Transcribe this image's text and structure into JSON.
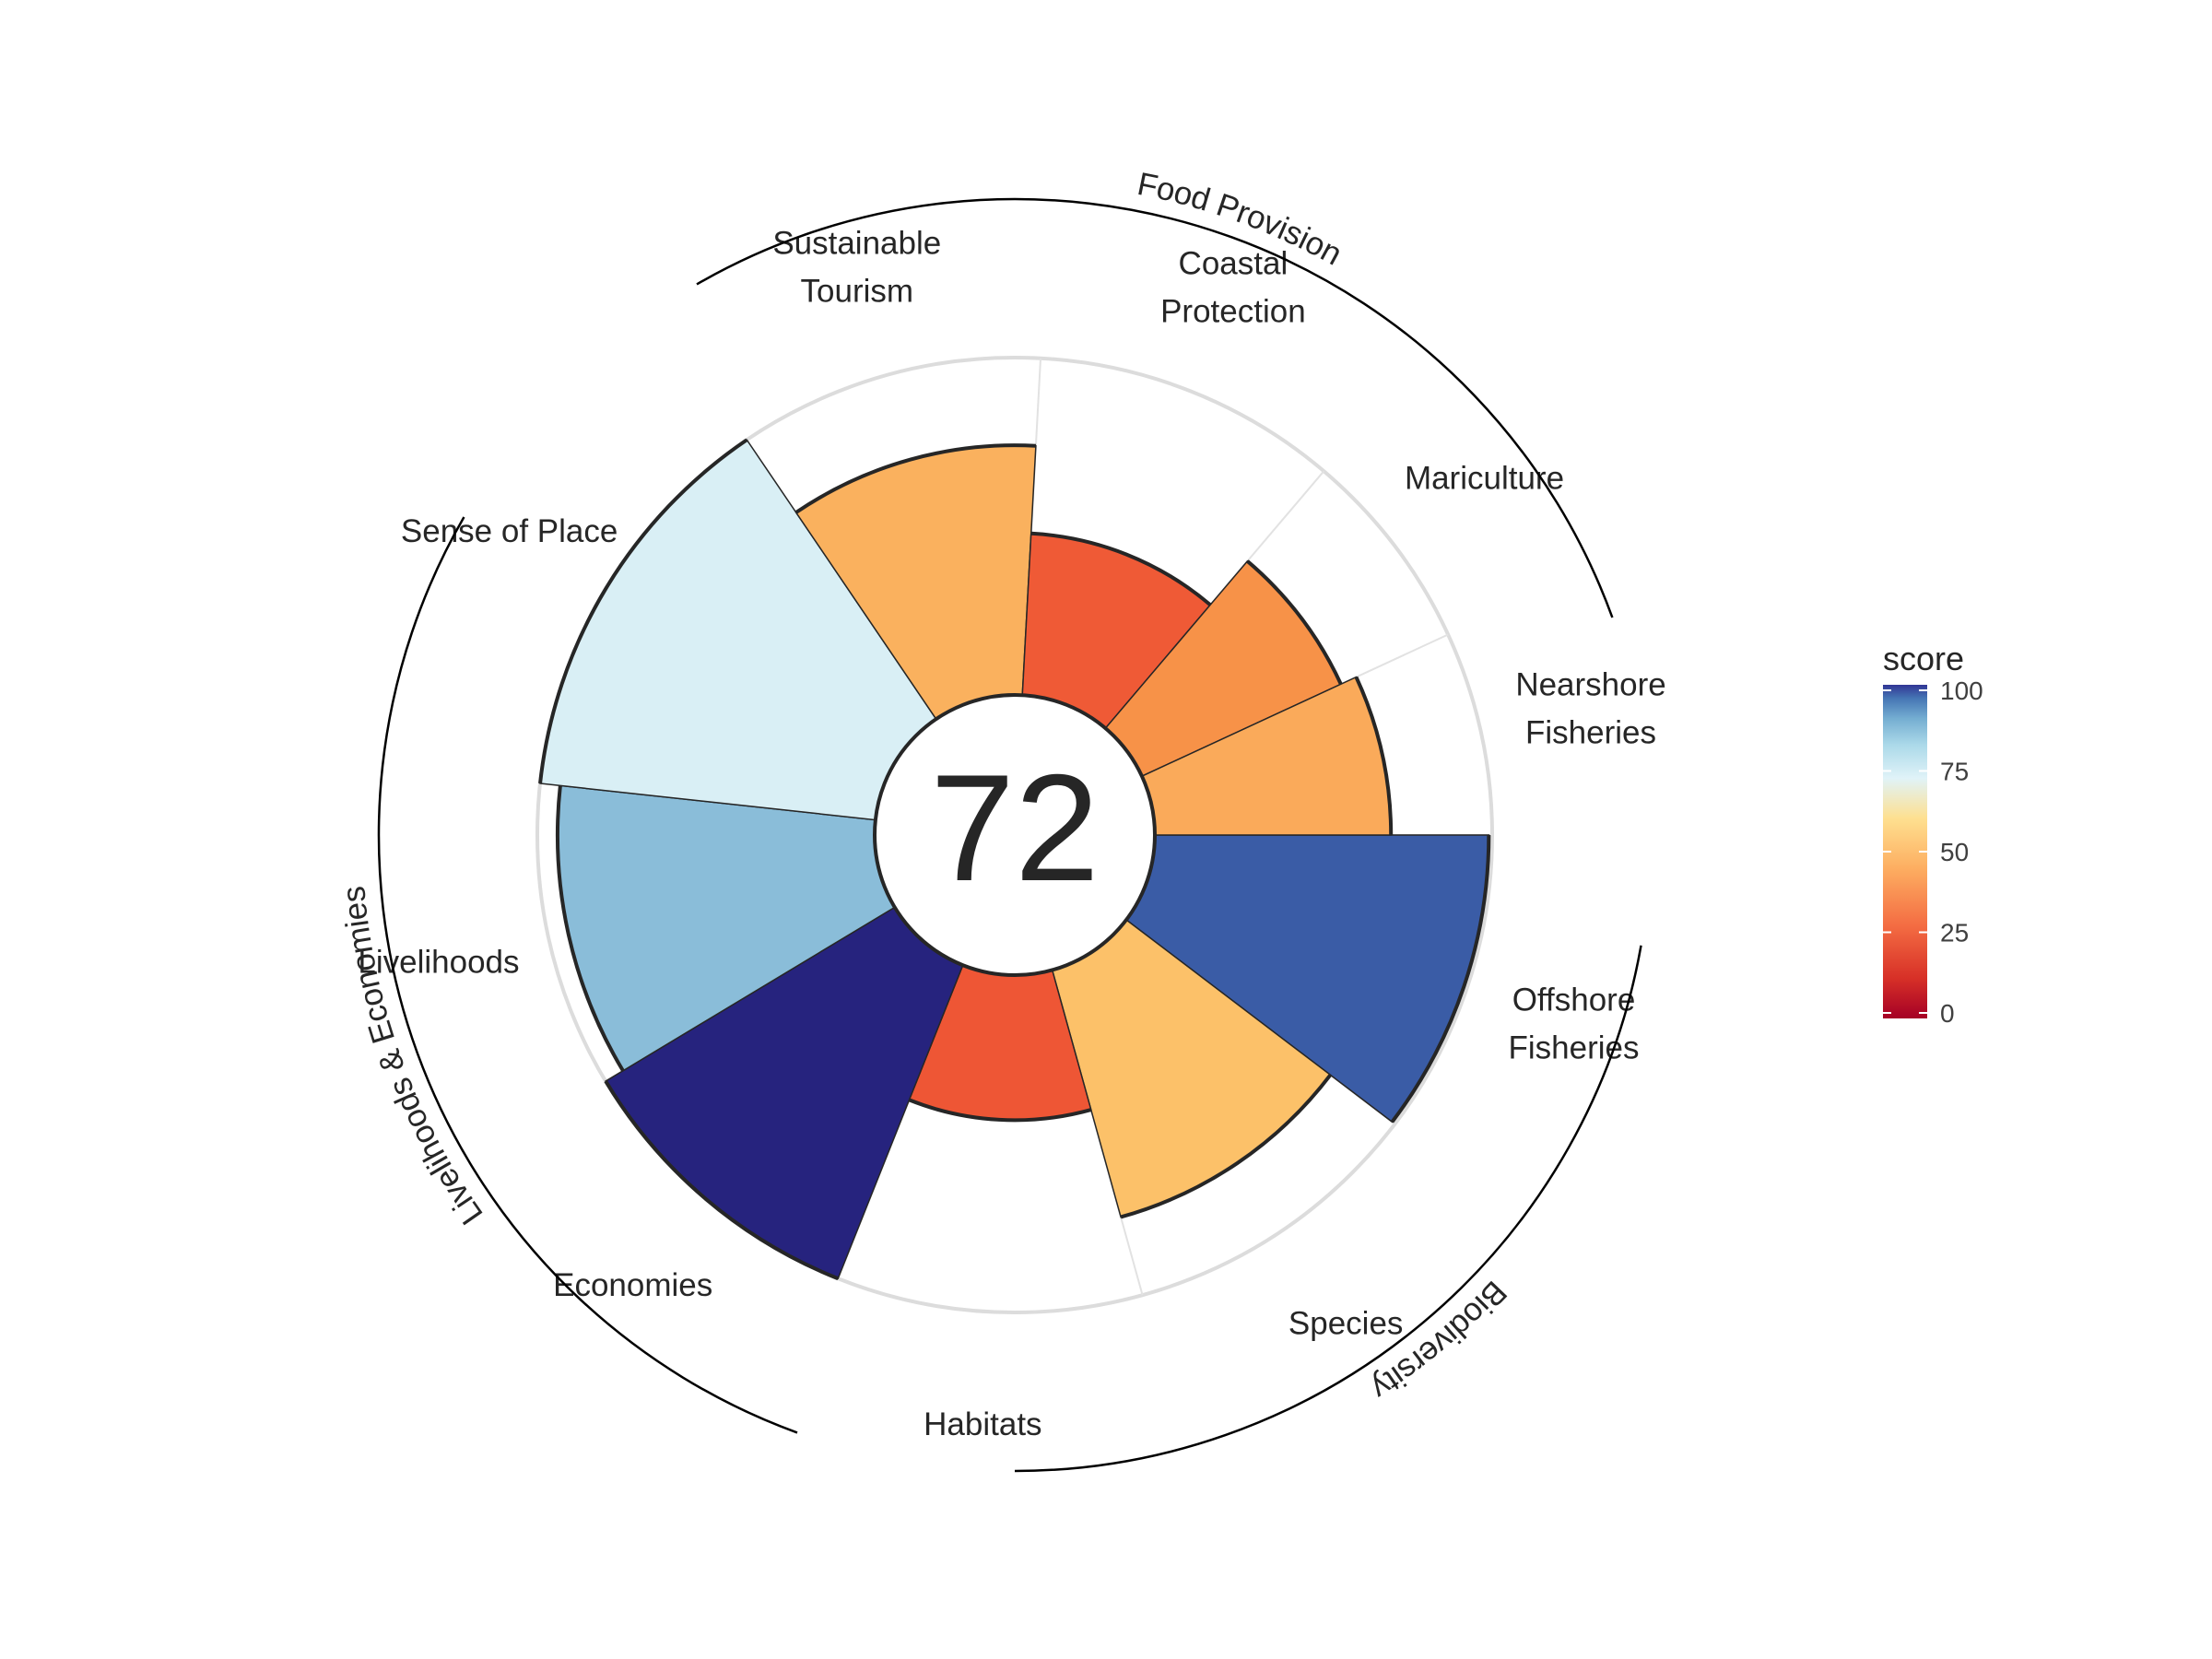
{
  "chart_data": {
    "type": "polar-bar",
    "center_label": "72",
    "rmax": 100,
    "rmin_inner_hole": 0.3,
    "grid": true,
    "categories": [
      "Offshore\nFisheries",
      "Species",
      "Habitats",
      "Economies",
      "Livelihoods",
      "Sense of Place",
      "Sustainable\nTourism",
      "Coastal\nProtection",
      "Mariculture",
      "Nearshore\nFisheries"
    ],
    "values": [
      99,
      76,
      43,
      100,
      94,
      100,
      74,
      48,
      65,
      70
    ],
    "widths": [
      1.5,
      1.5,
      1.5,
      1.5,
      1.5,
      2.0,
      1.5,
      1.5,
      1.0,
      1.0
    ],
    "colors": [
      "#3a5ca6",
      "#fcc169",
      "#ee5635",
      "#26237e",
      "#8abdd9",
      "#d9eff5",
      "#fab15e",
      "#ef5a36",
      "#f79248",
      "#faaa5a"
    ],
    "groups": [
      {
        "label": "Food Provision",
        "start_deg": -30,
        "end_deg": 70
      },
      {
        "label": "Biodiversity",
        "start_deg": 100,
        "end_deg": 180
      },
      {
        "label": "Livelihoods & Economies",
        "start_deg": 200,
        "end_deg": 300
      }
    ],
    "legend": {
      "title": "score",
      "ticks": [
        0,
        25,
        50,
        75,
        100
      ],
      "position": "right"
    }
  }
}
